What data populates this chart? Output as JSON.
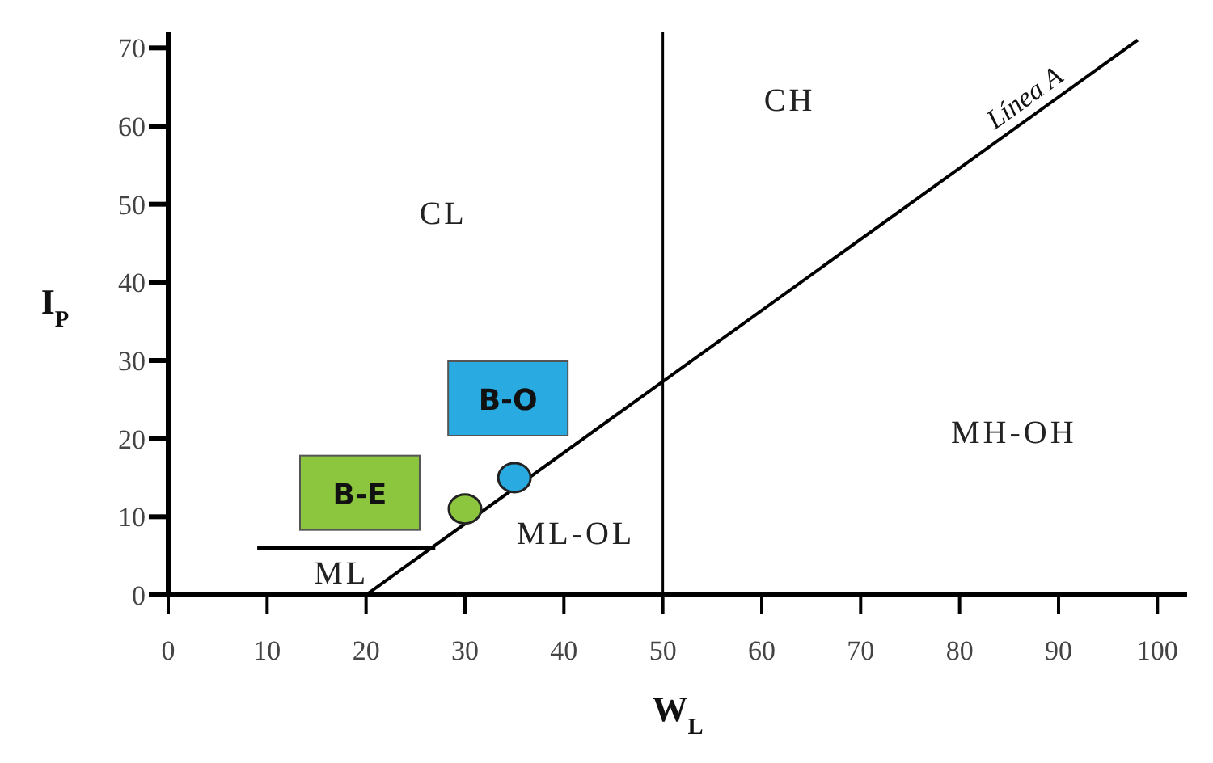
{
  "chart_data": {
    "type": "scatter",
    "xlabel": "W$_{L}$",
    "ylabel": "I$_{P}$",
    "xlim": [
      0,
      103
    ],
    "ylim": [
      0,
      72
    ],
    "xticks": [
      0,
      10,
      20,
      30,
      40,
      50,
      60,
      70,
      80,
      90,
      100
    ],
    "yticks": [
      0,
      10,
      20,
      30,
      40,
      50,
      60,
      70
    ],
    "series": [
      {
        "name": "B-E",
        "color": "#8cc63f",
        "marker": "circle",
        "x": [
          30
        ],
        "values": [
          11
        ]
      },
      {
        "name": "B-O",
        "color": "#29abe2",
        "marker": "circle",
        "x": [
          35
        ],
        "values": [
          15
        ]
      },
      {
        "name": "Línea A",
        "type": "line",
        "color": "#000000",
        "marker": "none",
        "x": [
          20,
          98
        ],
        "values": [
          0,
          71
        ]
      },
      {
        "type": "line",
        "color": "#000000",
        "marker": "none",
        "x": [
          9,
          27
        ],
        "values": [
          6,
          6
        ]
      }
    ],
    "ref_lines": [
      {
        "axis": "x",
        "value": 50,
        "color": "#000000"
      }
    ],
    "annotations": [
      "CL",
      "CH",
      "ML",
      "ML-OL",
      "MH-OH"
    ]
  }
}
